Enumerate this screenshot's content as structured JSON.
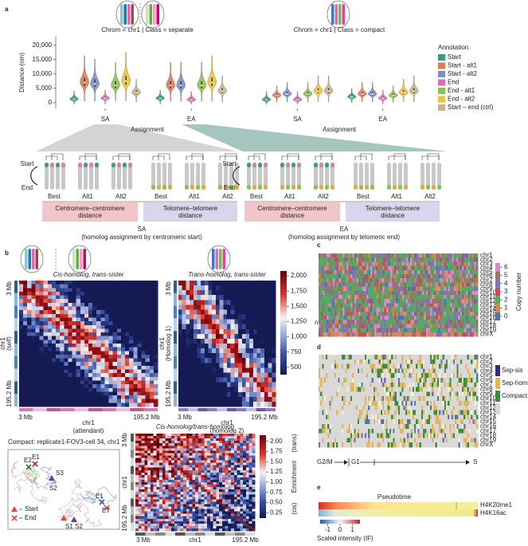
{
  "panel_a": {
    "label": "a",
    "ylabel": "Distance (nm)",
    "ylim": [
      -2000,
      23000
    ],
    "yticks": [
      0,
      {
        "value": 5000,
        "label": "5,000"
      },
      {
        "value": 10000,
        "label": "10,000"
      },
      {
        "value": 15000,
        "label": "15,000"
      },
      {
        "value": 20000,
        "label": "20,000"
      }
    ],
    "xlabel": "Assignment",
    "facets": [
      "Chrom = chr1 | Class = separate",
      "Chrom = chr1 | Class = compact"
    ],
    "categories": [
      "SA",
      "EA"
    ],
    "legend_title": "Annotation",
    "series": [
      {
        "name": "Start",
        "color": "#3a9e7e",
        "values": [
          [
            1200,
            1500
          ],
          [
            1000,
            2000
          ]
        ]
      },
      {
        "name": "Start - alt1",
        "color": "#e07b54",
        "values": [
          [
            7000,
            6000
          ],
          [
            2500,
            3000
          ]
        ]
      },
      {
        "name": "Start - alt2",
        "color": "#7b8fc6",
        "values": [
          [
            6500,
            6000
          ],
          [
            3000,
            3000
          ]
        ]
      },
      {
        "name": "End",
        "color": "#d66fb0",
        "values": [
          [
            1500,
            1000
          ],
          [
            1000,
            1500
          ]
        ]
      },
      {
        "name": "End - alt1",
        "color": "#8cc152",
        "values": [
          [
            6000,
            6000
          ],
          [
            3000,
            2500
          ]
        ]
      },
      {
        "name": "End - alt2",
        "color": "#e8c53a",
        "values": [
          [
            7500,
            7000
          ],
          [
            4000,
            3500
          ]
        ]
      },
      {
        "name": "Start – end (ctrl)",
        "color": "#c9b38c",
        "values": [
          [
            3500,
            4000
          ],
          [
            4000,
            4000
          ]
        ]
      }
    ]
  },
  "schematics": [
    {
      "start": "Start",
      "end": "End",
      "groups": [
        "Best",
        "Alt1",
        "Alt2",
        "Best",
        "Alt1",
        "Alt2"
      ],
      "box1": [
        "Centromere–centromere",
        "distance"
      ],
      "box2": [
        "Telomere–telomere",
        "distance"
      ],
      "name": "SA",
      "desc": "(homolog assignment by centromeric start)"
    },
    {
      "start": "Start",
      "end": "End",
      "groups": [
        "Best",
        "Alt1",
        "Alt2",
        "Best",
        "Alt1",
        "Alt2"
      ],
      "box1": [
        "Centromere–centromere",
        "distance"
      ],
      "box2": [
        "Telomere–telomere",
        "distance"
      ],
      "name": "EA",
      "desc": "(homolog assignment by telomeric end)"
    }
  ],
  "panel_b": {
    "label": "b",
    "maps": [
      {
        "title": "Cis-homolog, trans-sister",
        "left": [
          "3 Mb",
          "chr1",
          "(self)",
          "195.2 Mb"
        ],
        "bottom": [
          "3 Mb",
          "chr1",
          "(attendant)",
          "195.2 Mb"
        ]
      },
      {
        "title": "Trans-homolog, trans-sister",
        "left": [
          "3 Mb",
          "chr1",
          "(Homolog 1)",
          "195.2 Mb"
        ],
        "bottom": [
          "3 Mb",
          "chr1",
          "(homolog 2)",
          "195.2 Mb"
        ]
      }
    ],
    "colorbar": {
      "lim": [
        380,
        2080
      ],
      "unit": "nm",
      "ticks": [
        500,
        750,
        {
          "value": 1000,
          "label": "1,000"
        },
        {
          "value": 1250,
          "label": "1,250"
        },
        {
          "value": 1500,
          "label": "1,500"
        },
        {
          "value": 1750,
          "label": "1,750"
        },
        {
          "value": 2000,
          "label": "2,000"
        }
      ]
    },
    "trace": {
      "title": "Compact: replicate1-FOV3-cell 34, chr1",
      "labels": [
        "E2",
        "E1",
        "S3",
        "S2",
        "E1",
        "ET",
        "S1",
        "S2"
      ],
      "legend": [
        "Start",
        "End"
      ]
    },
    "enrich": {
      "title": "Cis-homolog/trans-homolog",
      "left": [
        "3 Mb",
        "chr1",
        "195.2 Mb"
      ],
      "bottom": [
        "3 Mb",
        "chr1",
        "195.2 Mb"
      ],
      "lim": [
        0.12,
        2.15
      ],
      "ticks": [
        0.25,
        {
          "value": 0.5,
          "label": "0.50"
        },
        0.75,
        {
          "value": 1,
          "label": "1.00"
        },
        1.25,
        {
          "value": 1.5,
          "label": "1.50"
        },
        1.75,
        {
          "value": 2,
          "label": "2.00"
        }
      ],
      "labels": [
        "(trans)",
        "Enrichment",
        "(cis)"
      ]
    }
  },
  "chromosomes": [
    "chr1",
    "chr2",
    "chr3",
    "chr4",
    "chr5",
    "chr6",
    "chr7",
    "chr8",
    "chr9",
    "chr10",
    "chr11",
    "chr12",
    "chr13",
    "chr14",
    "chr15",
    "chr16",
    "chr17",
    "chr18",
    "chr19",
    "chrX"
  ],
  "panel_c": {
    "label": "c",
    "colorbar": {
      "label": "Copy number",
      "ticks": [
        0,
        1,
        2,
        3,
        4,
        5,
        6
      ],
      "lim": [
        -0.5,
        6.5
      ],
      "colors": [
        "#4c72b0",
        "#dd8452",
        "#55a868",
        "#c44e52",
        "#8172b3",
        "#937860",
        "#da8bc3"
      ]
    }
  },
  "panel_d": {
    "label": "d",
    "legend": [
      {
        "name": "Sep-sis",
        "color": "#2b2f7d"
      },
      {
        "name": "Sep-hom",
        "color": "#e3b55a"
      },
      {
        "name": "Compact",
        "color": "#3b8c3b"
      }
    ],
    "axis": [
      "G2/M",
      "G1",
      "S"
    ]
  },
  "panel_e": {
    "label": "e",
    "title": "Pseudotime",
    "tracks": [
      "H4K20me1",
      "H4K16ac"
    ],
    "colorbar": {
      "label": "Scaled intensity (IF)",
      "ticks": [
        -1,
        0,
        1
      ],
      "lim": [
        -1.6,
        1.6
      ]
    }
  }
}
